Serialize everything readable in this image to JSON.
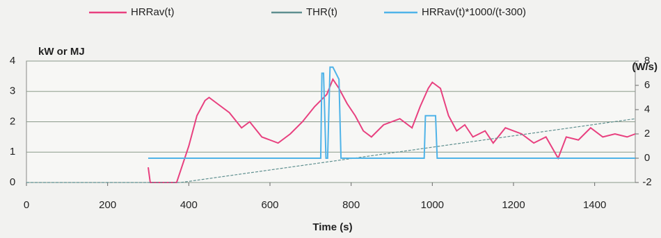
{
  "chart_data": {
    "type": "line",
    "x_label": "Time (s)",
    "y_label": "kW or MJ",
    "y2_label": "(W/s)",
    "xlim": [
      0,
      1500
    ],
    "xticks": [
      0,
      200,
      400,
      600,
      800,
      1000,
      1200,
      1400
    ],
    "ylim": [
      0,
      4
    ],
    "yticks": [
      0,
      1,
      2,
      3,
      4
    ],
    "y2lim": [
      -2,
      8
    ],
    "y2ticks": [
      -2,
      0,
      2,
      4,
      6,
      8
    ],
    "grid": true,
    "legend": "top",
    "series": [
      {
        "name": "HRRav(t)",
        "color": "#e8407f",
        "x": [
          300,
          305,
          370,
          400,
          420,
          440,
          450,
          470,
          500,
          530,
          550,
          580,
          600,
          620,
          650,
          680,
          710,
          740,
          755,
          770,
          790,
          810,
          830,
          850,
          880,
          920,
          950,
          970,
          990,
          1000,
          1020,
          1040,
          1060,
          1080,
          1100,
          1130,
          1150,
          1180,
          1220,
          1250,
          1280,
          1310,
          1330,
          1360,
          1390,
          1420,
          1450,
          1480,
          1500
        ],
        "values": [
          0.5,
          0,
          0,
          1.2,
          2.2,
          2.7,
          2.8,
          2.6,
          2.3,
          1.8,
          2.0,
          1.5,
          1.4,
          1.3,
          1.6,
          2.0,
          2.5,
          2.9,
          3.4,
          3.1,
          2.6,
          2.2,
          1.7,
          1.5,
          1.9,
          2.1,
          1.8,
          2.5,
          3.1,
          3.3,
          3.1,
          2.2,
          1.7,
          1.9,
          1.5,
          1.7,
          1.3,
          1.8,
          1.6,
          1.3,
          1.5,
          0.8,
          1.5,
          1.4,
          1.8,
          1.5,
          1.6,
          1.5,
          1.6
        ]
      },
      {
        "name": "THR(t)",
        "color": "#5e8f8f",
        "x": [
          0,
          380,
          1500
        ],
        "values": [
          0,
          0,
          2.1
        ]
      },
      {
        "name": "HRRav(t)*1000/(t-300)",
        "color": "#4fb3e8",
        "axis": "y2",
        "x": [
          300,
          725,
          728,
          732,
          738,
          742,
          748,
          755,
          770,
          775,
          980,
          983,
          1008,
          1012,
          1500
        ],
        "values": [
          0,
          0,
          7,
          7,
          0,
          0,
          7.5,
          7.5,
          6.5,
          0,
          0,
          3.5,
          3.5,
          0,
          0
        ]
      }
    ]
  }
}
